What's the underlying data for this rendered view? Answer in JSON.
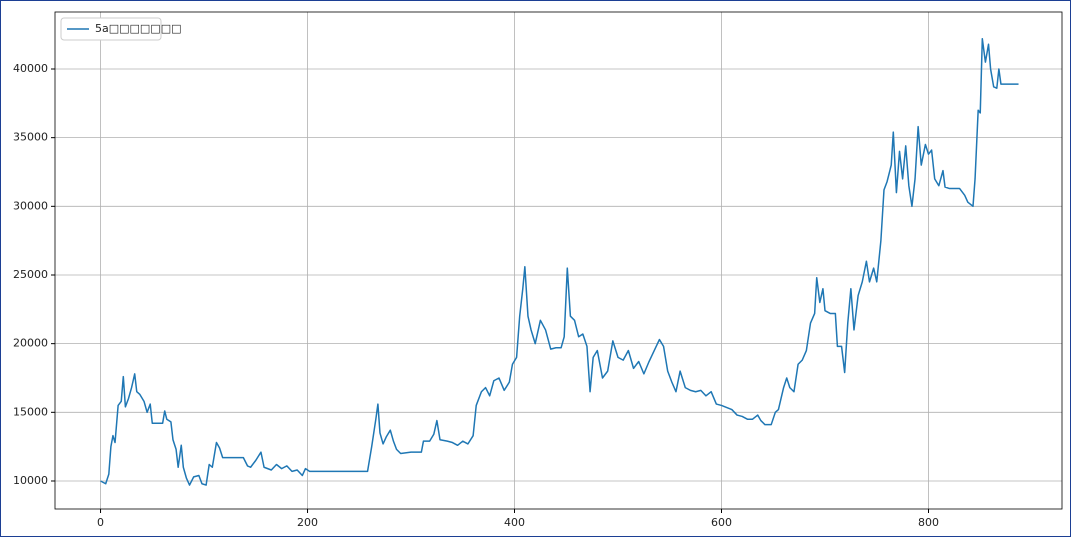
{
  "chart_data": {
    "type": "line",
    "x": [
      0,
      5,
      8,
      10,
      12,
      14,
      17,
      20,
      22,
      24,
      27,
      30,
      33,
      35,
      38,
      42,
      45,
      48,
      50,
      55,
      60,
      62,
      64,
      68,
      70,
      73,
      75,
      78,
      80,
      83,
      86,
      90,
      95,
      98,
      102,
      105,
      108,
      112,
      115,
      118,
      125,
      132,
      138,
      142,
      145,
      150,
      155,
      158,
      165,
      170,
      175,
      180,
      185,
      190,
      195,
      198,
      202,
      210,
      220,
      230,
      240,
      250,
      258,
      262,
      266,
      268,
      270,
      273,
      276,
      280,
      283,
      286,
      290,
      300,
      310,
      312,
      318,
      322,
      325,
      328,
      335,
      340,
      345,
      350,
      355,
      360,
      363,
      368,
      372,
      376,
      380,
      385,
      390,
      395,
      398,
      402,
      405,
      408,
      410,
      413,
      416,
      420,
      425,
      430,
      435,
      440,
      445,
      448,
      451,
      454,
      458,
      462,
      466,
      470,
      473,
      476,
      480,
      485,
      490,
      495,
      500,
      505,
      510,
      515,
      520,
      525,
      530,
      535,
      540,
      544,
      548,
      552,
      556,
      560,
      565,
      570,
      575,
      580,
      585,
      590,
      595,
      600,
      610,
      615,
      620,
      625,
      630,
      635,
      638,
      642,
      648,
      652,
      655,
      660,
      663,
      666,
      670,
      674,
      678,
      682,
      686,
      690,
      692,
      695,
      698,
      700,
      705,
      710,
      712,
      716,
      719,
      722,
      725,
      728,
      732,
      736,
      740,
      743,
      747,
      750,
      754,
      757,
      760,
      764,
      766,
      769,
      772,
      775,
      778,
      781,
      784,
      787,
      790,
      793,
      797,
      800,
      803,
      806,
      810,
      814,
      816,
      820,
      825,
      830,
      835,
      838,
      843,
      845,
      848,
      850,
      852,
      855,
      858,
      860,
      863,
      866,
      868,
      870,
      875,
      880,
      887
    ],
    "series": [
      {
        "name": "5a□□□□□□□",
        "color": "#1f77b4",
        "values": [
          10000,
          9800,
          10500,
          12500,
          13300,
          12800,
          15500,
          15800,
          17600,
          15400,
          16000,
          16800,
          17800,
          16500,
          16300,
          15800,
          15000,
          15600,
          14200,
          14200,
          14200,
          15100,
          14500,
          14300,
          13000,
          12300,
          11000,
          12600,
          11000,
          10200,
          9700,
          10300,
          10400,
          9800,
          9700,
          11200,
          11000,
          12800,
          12400,
          11700,
          11700,
          11700,
          11700,
          11100,
          11000,
          11500,
          12100,
          11000,
          10800,
          11200,
          10900,
          11100,
          10700,
          10800,
          10400,
          10900,
          10700,
          10700,
          10700,
          10700,
          10700,
          10700,
          10700,
          12500,
          14500,
          15600,
          13500,
          12700,
          13200,
          13700,
          12900,
          12300,
          12000,
          12100,
          12100,
          12900,
          12900,
          13400,
          14400,
          13000,
          12900,
          12800,
          12600,
          12900,
          12700,
          13300,
          15500,
          16500,
          16800,
          16200,
          17300,
          17500,
          16600,
          17200,
          18500,
          19000,
          22000,
          24000,
          25600,
          22000,
          21000,
          20000,
          21700,
          21000,
          19600,
          19700,
          19700,
          20500,
          25500,
          22000,
          21700,
          20500,
          20700,
          19800,
          16500,
          19000,
          19500,
          17500,
          18000,
          20200,
          19000,
          18800,
          19500,
          18200,
          18700,
          17800,
          18700,
          19500,
          20300,
          19800,
          18000,
          17200,
          16500,
          18000,
          16800,
          16600,
          16500,
          16600,
          16200,
          16500,
          15600,
          15500,
          15200,
          14800,
          14700,
          14500,
          14500,
          14800,
          14400,
          14100,
          14100,
          15000,
          15200,
          16800,
          17500,
          16800,
          16500,
          18500,
          18800,
          19500,
          21500,
          22200,
          24800,
          23000,
          24000,
          22400,
          22200,
          22200,
          19800,
          19800,
          17900,
          21500,
          24000,
          21000,
          23500,
          24500,
          26000,
          24500,
          25500,
          24500,
          27500,
          31200,
          31800,
          33000,
          35400,
          31000,
          34000,
          32000,
          34400,
          31500,
          30000,
          32000,
          35800,
          33000,
          34500,
          33800,
          34100,
          32000,
          31500,
          32600,
          31400,
          31300,
          31300,
          31300,
          30800,
          30300,
          30000,
          32000,
          37000,
          36800,
          42200,
          40500,
          41800,
          40000,
          38700,
          38600,
          40000,
          38900,
          38900,
          38900,
          38900
        ]
      }
    ],
    "xlim": [
      -44,
      929
    ],
    "ylim": [
      7960,
      44150
    ],
    "xticks": [
      0,
      200,
      400,
      600,
      800
    ],
    "yticks": [
      10000,
      15000,
      20000,
      25000,
      30000,
      35000,
      40000
    ],
    "grid": true,
    "legend": "upper left"
  }
}
